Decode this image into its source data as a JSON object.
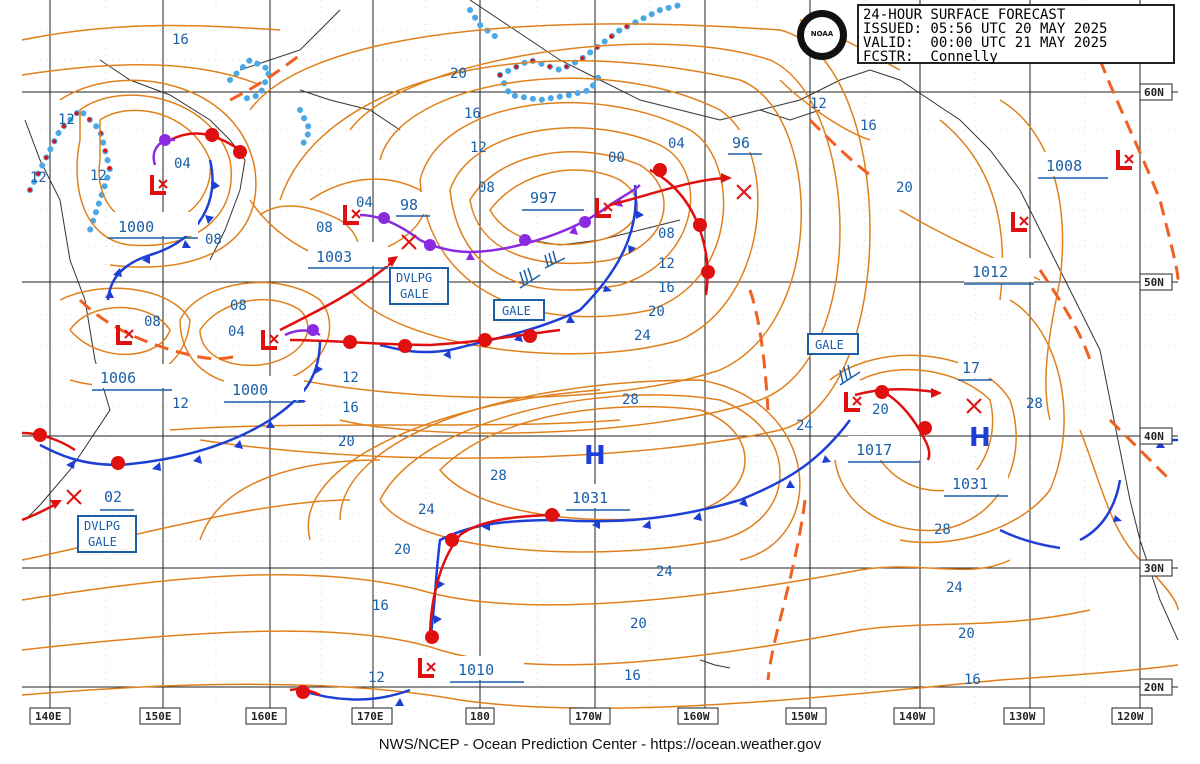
{
  "header": {
    "title": "24-HOUR SURFACE FORECAST",
    "issued": "ISSUED: 05:56 UTC 20 MAY 2025",
    "valid": "VALID:  00:00 UTC 21 MAY 2025",
    "fcstr": "FCSTR:  Connelly",
    "logo": "NOAA"
  },
  "footer": "NWS/NCEP - Ocean Prediction Center - https://ocean.weather.gov",
  "axis": {
    "lon_labels": [
      "140E",
      "150E",
      "160E",
      "170E",
      "180",
      "170W",
      "160W",
      "150W",
      "140W",
      "130W",
      "120W"
    ],
    "lat_labels": [
      "60N",
      "50N",
      "40N",
      "30N",
      "20N"
    ]
  },
  "systems": {
    "lows": [
      {
        "pressure": "1000"
      },
      {
        "pressure": "1003"
      },
      {
        "pressure": "997"
      },
      {
        "pressure": "1006"
      },
      {
        "pressure": "1000"
      },
      {
        "pressure": "1010"
      },
      {
        "pressure": "1017"
      },
      {
        "pressure": "1008"
      }
    ],
    "highs": [
      {
        "symbol": "H",
        "pressure": "1031"
      },
      {
        "symbol": "H",
        "pressure": "1031"
      }
    ],
    "forecast_positions": [
      "98",
      "96",
      "02",
      "17"
    ],
    "other_pressures": [
      "1012"
    ],
    "warnings": [
      "DVLPG GALE",
      "GALE",
      "GALE",
      "DVLPG GALE"
    ]
  },
  "isobar_labels": [
    "16",
    "20",
    "12",
    "12",
    "04",
    "08",
    "16",
    "12",
    "08",
    "04",
    "98",
    "08",
    "04",
    "00",
    "04",
    "08",
    "12",
    "16",
    "20",
    "24",
    "28",
    "28",
    "24",
    "20",
    "16",
    "12",
    "08",
    "04",
    "08",
    "12",
    "16",
    "20",
    "24",
    "20",
    "16",
    "12",
    "20",
    "24",
    "28",
    "12",
    "16",
    "20",
    "28",
    "24",
    "20",
    "16",
    "12"
  ],
  "colors": {
    "isobar": "#e0801c",
    "cold_front": "#1d3fd6",
    "warm_front": "#e01010",
    "occluded_front": "#8a2be2",
    "ice": "#4aa8e6",
    "label": "#1a5fa8",
    "grid": "#222222"
  }
}
